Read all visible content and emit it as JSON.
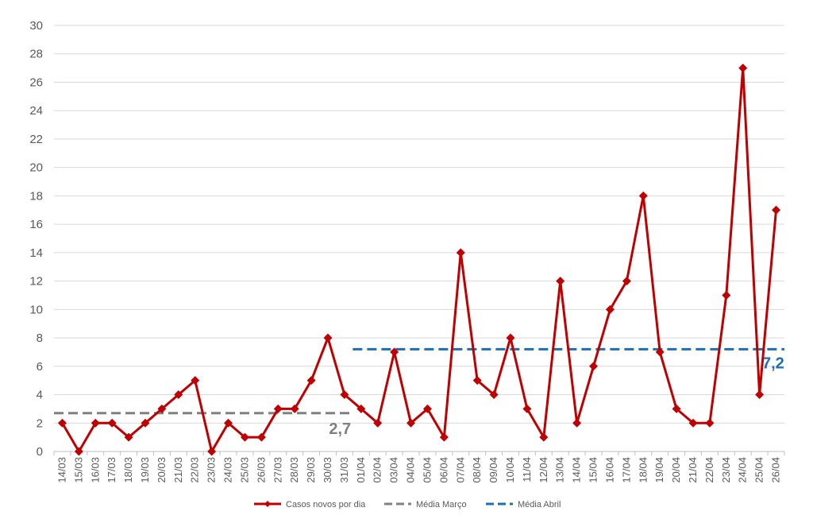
{
  "chart_data": {
    "type": "line",
    "categories": [
      "14/03",
      "15/03",
      "16/03",
      "17/03",
      "18/03",
      "19/03",
      "20/03",
      "21/03",
      "22/03",
      "23/03",
      "24/03",
      "25/03",
      "26/03",
      "27/03",
      "28/03",
      "29/03",
      "30/03",
      "31/03",
      "01/04",
      "02/04",
      "03/04",
      "04/04",
      "05/04",
      "06/04",
      "07/04",
      "08/04",
      "09/04",
      "10/04",
      "11/04",
      "12/04",
      "13/04",
      "14/04",
      "15/04",
      "16/04",
      "17/04",
      "18/04",
      "19/04",
      "20/04",
      "21/04",
      "22/04",
      "23/04",
      "24/04",
      "25/04",
      "26/04"
    ],
    "series": [
      {
        "name": "Casos novos por dia",
        "color": "#c00000",
        "values": [
          2,
          0,
          2,
          2,
          1,
          2,
          3,
          4,
          5,
          0,
          2,
          1,
          1,
          3,
          3,
          5,
          8,
          4,
          3,
          2,
          7,
          2,
          3,
          1,
          14,
          5,
          4,
          8,
          3,
          1,
          12,
          2,
          6,
          10,
          12,
          18,
          7,
          3,
          2,
          2,
          11,
          27,
          4,
          17
        ]
      }
    ],
    "averages": [
      {
        "name": "Média Março",
        "value": 2.7,
        "label": "2,7",
        "color": "#808080",
        "start": "14/03",
        "end": "31/03"
      },
      {
        "name": "Média Abril",
        "value": 7.2,
        "label": "7,2",
        "color": "#1f6fb0",
        "start": "01/04",
        "end": "26/04"
      }
    ],
    "yticks": [
      "0",
      "2",
      "4",
      "6",
      "8",
      "10",
      "12",
      "14",
      "16",
      "18",
      "20",
      "22",
      "24",
      "26",
      "28",
      "30"
    ],
    "ylim": [
      0,
      30
    ],
    "grid": true,
    "legend": {
      "placement": "bottom"
    }
  }
}
